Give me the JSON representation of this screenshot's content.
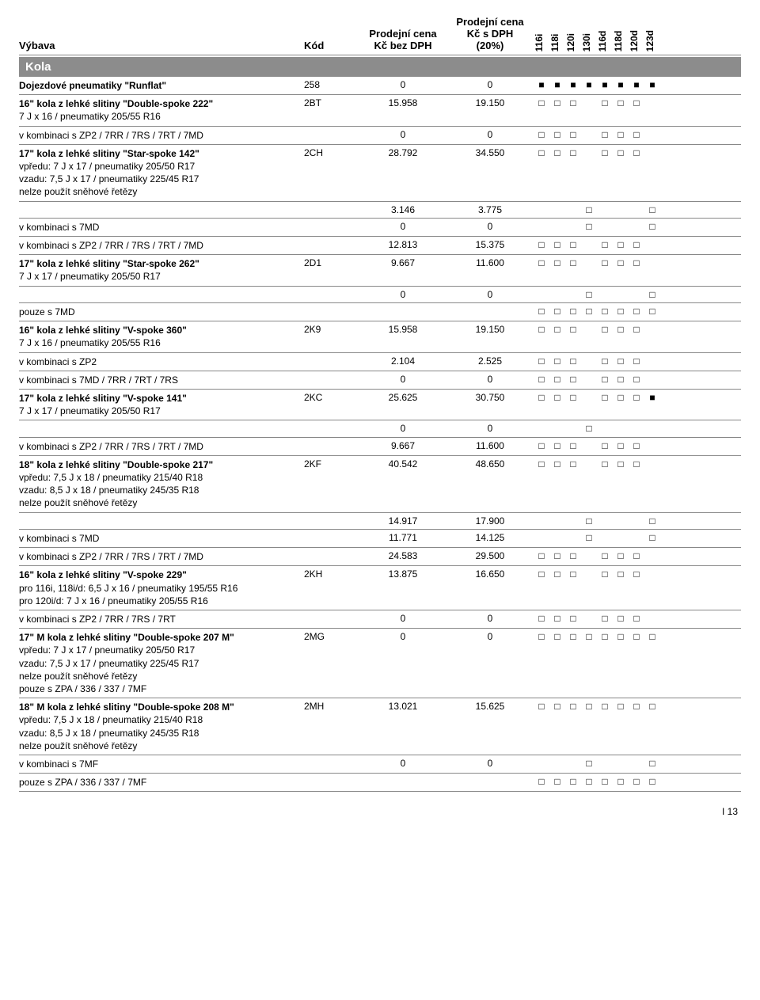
{
  "header": {
    "c1": "Výbava",
    "c2": "Kód",
    "c3": "Prodejní cena\nKč bez DPH",
    "c4": "Prodejní cena\nKč s DPH\n(20%)",
    "models": [
      "116i",
      "118i",
      "120i",
      "130i",
      "116d",
      "118d",
      "120d",
      "123d"
    ]
  },
  "section": "Kola",
  "rows": [
    {
      "desc_bold": "Dojezdové pneumatiky \"Runflat\"",
      "desc_rest": "",
      "code": "258",
      "p1": "0",
      "p2": "0",
      "marks": [
        "filled",
        "filled",
        "filled",
        "filled",
        "filled",
        "filled",
        "filled",
        "filled"
      ]
    },
    {
      "desc_bold": "16\" kola z lehké slitiny \"Double-spoke 222\"",
      "desc_rest": "\n7 J x 16 / pneumatiky 205/55 R16",
      "code": "2BT",
      "p1": "15.958",
      "p2": "19.150",
      "marks": [
        "empty",
        "empty",
        "empty",
        "none",
        "empty",
        "empty",
        "empty",
        "none"
      ]
    },
    {
      "desc_bold": "",
      "desc_rest": "v kombinaci s ZP2 / 7RR / 7RS / 7RT / 7MD",
      "code": "",
      "p1": "0",
      "p2": "0",
      "marks": [
        "empty",
        "empty",
        "empty",
        "none",
        "empty",
        "empty",
        "empty",
        "none"
      ]
    },
    {
      "desc_bold": "17\" kola z lehké slitiny \"Star-spoke 142\"",
      "desc_rest": "\nvpředu: 7 J x 17 / pneumatiky 205/50 R17\nvzadu: 7,5 J x 17 / pneumatiky 225/45 R17\nnelze použít sněhové řetězy",
      "code": "2CH",
      "p1": "28.792",
      "p2": "34.550",
      "marks": [
        "empty",
        "empty",
        "empty",
        "none",
        "empty",
        "empty",
        "empty",
        "none"
      ]
    },
    {
      "desc_bold": "",
      "desc_rest": "",
      "code": "",
      "p1": "3.146",
      "p2": "3.775",
      "marks": [
        "none",
        "none",
        "none",
        "empty",
        "none",
        "none",
        "none",
        "empty"
      ]
    },
    {
      "desc_bold": "",
      "desc_rest": "v kombinaci s 7MD",
      "code": "",
      "p1": "0",
      "p2": "0",
      "marks": [
        "none",
        "none",
        "none",
        "empty",
        "none",
        "none",
        "none",
        "empty"
      ]
    },
    {
      "desc_bold": "",
      "desc_rest": "v kombinaci s ZP2 / 7RR / 7RS / 7RT / 7MD",
      "code": "",
      "p1": "12.813",
      "p2": "15.375",
      "marks": [
        "empty",
        "empty",
        "empty",
        "none",
        "empty",
        "empty",
        "empty",
        "none"
      ]
    },
    {
      "desc_bold": "17\" kola z lehké slitiny \"Star-spoke 262\"",
      "desc_rest": "\n7 J x 17 / pneumatiky 205/50 R17",
      "code": "2D1",
      "p1": "9.667",
      "p2": "11.600",
      "marks": [
        "empty",
        "empty",
        "empty",
        "none",
        "empty",
        "empty",
        "empty",
        "none"
      ]
    },
    {
      "desc_bold": "",
      "desc_rest": "",
      "code": "",
      "p1": "0",
      "p2": "0",
      "marks": [
        "none",
        "none",
        "none",
        "empty",
        "none",
        "none",
        "none",
        "empty"
      ]
    },
    {
      "desc_bold": "",
      "desc_rest": "pouze s 7MD",
      "code": "",
      "p1": "",
      "p2": "",
      "marks": [
        "empty",
        "empty",
        "empty",
        "empty",
        "empty",
        "empty",
        "empty",
        "empty"
      ]
    },
    {
      "desc_bold": "16\" kola z lehké slitiny \"V-spoke 360\"",
      "desc_rest": "\n7 J x 16 / pneumatiky 205/55 R16",
      "code": "2K9",
      "p1": "15.958",
      "p2": "19.150",
      "marks": [
        "empty",
        "empty",
        "empty",
        "none",
        "empty",
        "empty",
        "empty",
        "none"
      ]
    },
    {
      "desc_bold": "",
      "desc_rest": "v kombinaci s ZP2",
      "code": "",
      "p1": "2.104",
      "p2": "2.525",
      "marks": [
        "empty",
        "empty",
        "empty",
        "none",
        "empty",
        "empty",
        "empty",
        "none"
      ]
    },
    {
      "desc_bold": "",
      "desc_rest": "v kombinaci s 7MD / 7RR / 7RT / 7RS",
      "code": "",
      "p1": "0",
      "p2": "0",
      "marks": [
        "empty",
        "empty",
        "empty",
        "none",
        "empty",
        "empty",
        "empty",
        "none"
      ]
    },
    {
      "desc_bold": "17\" kola z lehké slitiny \"V-spoke 141\"",
      "desc_rest": "\n7 J x 17 / pneumatiky 205/50 R17",
      "code": "2KC",
      "p1": "25.625",
      "p2": "30.750",
      "marks": [
        "empty",
        "empty",
        "empty",
        "none",
        "empty",
        "empty",
        "empty",
        "filled"
      ]
    },
    {
      "desc_bold": "",
      "desc_rest": "",
      "code": "",
      "p1": "0",
      "p2": "0",
      "marks": [
        "none",
        "none",
        "none",
        "empty",
        "none",
        "none",
        "none",
        "none"
      ]
    },
    {
      "desc_bold": "",
      "desc_rest": "v kombinaci s ZP2 / 7RR / 7RS / 7RT / 7MD",
      "code": "",
      "p1": "9.667",
      "p2": "11.600",
      "marks": [
        "empty",
        "empty",
        "empty",
        "none",
        "empty",
        "empty",
        "empty",
        "none"
      ]
    },
    {
      "desc_bold": "18\" kola z lehké slitiny \"Double-spoke 217\"",
      "desc_rest": "\nvpředu: 7,5 J x 18 / pneumatiky 215/40 R18\nvzadu: 8,5 J x 18 / pneumatiky 245/35 R18\nnelze použít sněhové řetězy",
      "code": "2KF",
      "p1": "40.542",
      "p2": "48.650",
      "marks": [
        "empty",
        "empty",
        "empty",
        "none",
        "empty",
        "empty",
        "empty",
        "none"
      ]
    },
    {
      "desc_bold": "",
      "desc_rest": "",
      "code": "",
      "p1": "14.917",
      "p2": "17.900",
      "marks": [
        "none",
        "none",
        "none",
        "empty",
        "none",
        "none",
        "none",
        "empty"
      ]
    },
    {
      "desc_bold": "",
      "desc_rest": "v kombinaci s 7MD",
      "code": "",
      "p1": "11.771",
      "p2": "14.125",
      "marks": [
        "none",
        "none",
        "none",
        "empty",
        "none",
        "none",
        "none",
        "empty"
      ]
    },
    {
      "desc_bold": "",
      "desc_rest": "v kombinaci s ZP2 / 7RR / 7RS / 7RT / 7MD",
      "code": "",
      "p1": "24.583",
      "p2": "29.500",
      "marks": [
        "empty",
        "empty",
        "empty",
        "none",
        "empty",
        "empty",
        "empty",
        "none"
      ]
    },
    {
      "desc_bold": "16\" kola z lehké slitiny \"V-spoke 229\"",
      "desc_rest": "\npro 116i, 118i/d: 6,5 J x 16 / pneumatiky 195/55 R16\npro 120i/d: 7 J x 16 / pneumatiky 205/55 R16",
      "code": "2KH",
      "p1": "13.875",
      "p2": "16.650",
      "marks": [
        "empty",
        "empty",
        "empty",
        "none",
        "empty",
        "empty",
        "empty",
        "none"
      ]
    },
    {
      "desc_bold": "",
      "desc_rest": "v kombinaci s ZP2 / 7RR / 7RS / 7RT",
      "code": "",
      "p1": "0",
      "p2": "0",
      "marks": [
        "empty",
        "empty",
        "empty",
        "none",
        "empty",
        "empty",
        "empty",
        "none"
      ]
    },
    {
      "desc_bold": "17\" M kola z lehké slitiny \"Double-spoke 207 M\"",
      "desc_rest": "\nvpředu: 7 J x 17 / pneumatiky 205/50 R17\nvzadu: 7,5 J x 17 / pneumatiky 225/45 R17\nnelze použít sněhové řetězy\npouze s ZPA / 336 / 337 / 7MF",
      "code": "2MG",
      "p1": "0",
      "p2": "0",
      "marks": [
        "empty",
        "empty",
        "empty",
        "empty",
        "empty",
        "empty",
        "empty",
        "empty"
      ]
    },
    {
      "desc_bold": "18\" M kola z lehké slitiny \"Double-spoke 208 M\"",
      "desc_rest": "\nvpředu: 7,5 J x 18 / pneumatiky 215/40 R18\nvzadu: 8,5 J x 18 / pneumatiky 245/35 R18\nnelze použít sněhové řetězy",
      "code": "2MH",
      "p1": "13.021",
      "p2": "15.625",
      "marks": [
        "empty",
        "empty",
        "empty",
        "empty",
        "empty",
        "empty",
        "empty",
        "empty"
      ]
    },
    {
      "desc_bold": "",
      "desc_rest": "v kombinaci s 7MF",
      "code": "",
      "p1": "0",
      "p2": "0",
      "marks": [
        "none",
        "none",
        "none",
        "empty",
        "none",
        "none",
        "none",
        "empty"
      ]
    },
    {
      "desc_bold": "",
      "desc_rest": "pouze s ZPA / 336 / 337 / 7MF",
      "code": "",
      "p1": "",
      "p2": "",
      "marks": [
        "empty",
        "empty",
        "empty",
        "empty",
        "empty",
        "empty",
        "empty",
        "empty"
      ]
    }
  ],
  "footer": "I 13"
}
